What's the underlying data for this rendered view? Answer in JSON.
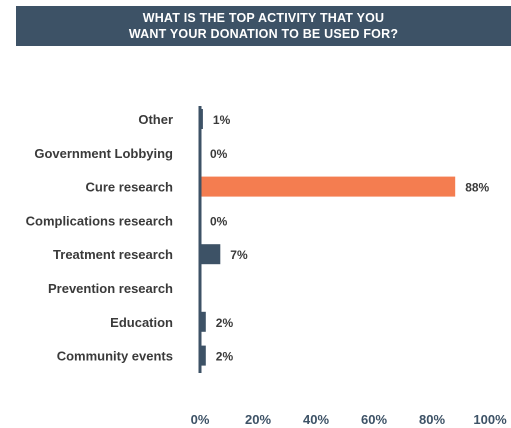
{
  "chart_data": {
    "type": "bar",
    "orientation": "horizontal",
    "title_lines": [
      "WHAT IS THE TOP ACTIVITY THAT YOU",
      "WANT YOUR DONATION TO BE USED FOR?"
    ],
    "categories": [
      "Other",
      "Government Lobbying",
      "Cure research",
      "Complications research",
      "Treatment research",
      "Prevention research",
      "Education",
      "Community events"
    ],
    "values": [
      1,
      0,
      88,
      0,
      7,
      null,
      2,
      2
    ],
    "value_labels": [
      "1%",
      "0%",
      "88%",
      "0%",
      "7%",
      "",
      "2%",
      "2%"
    ],
    "xlim": [
      0,
      100
    ],
    "x_ticks": [
      0,
      20,
      40,
      60,
      80,
      100
    ],
    "x_tick_labels": [
      "0%",
      "20%",
      "40%",
      "60%",
      "80%",
      "100%"
    ],
    "grid": false,
    "colors": {
      "default_bar": "#3d5266",
      "highlight_bar": "#f47d50",
      "axis": "#3d5266"
    },
    "highlight_index": 2
  }
}
